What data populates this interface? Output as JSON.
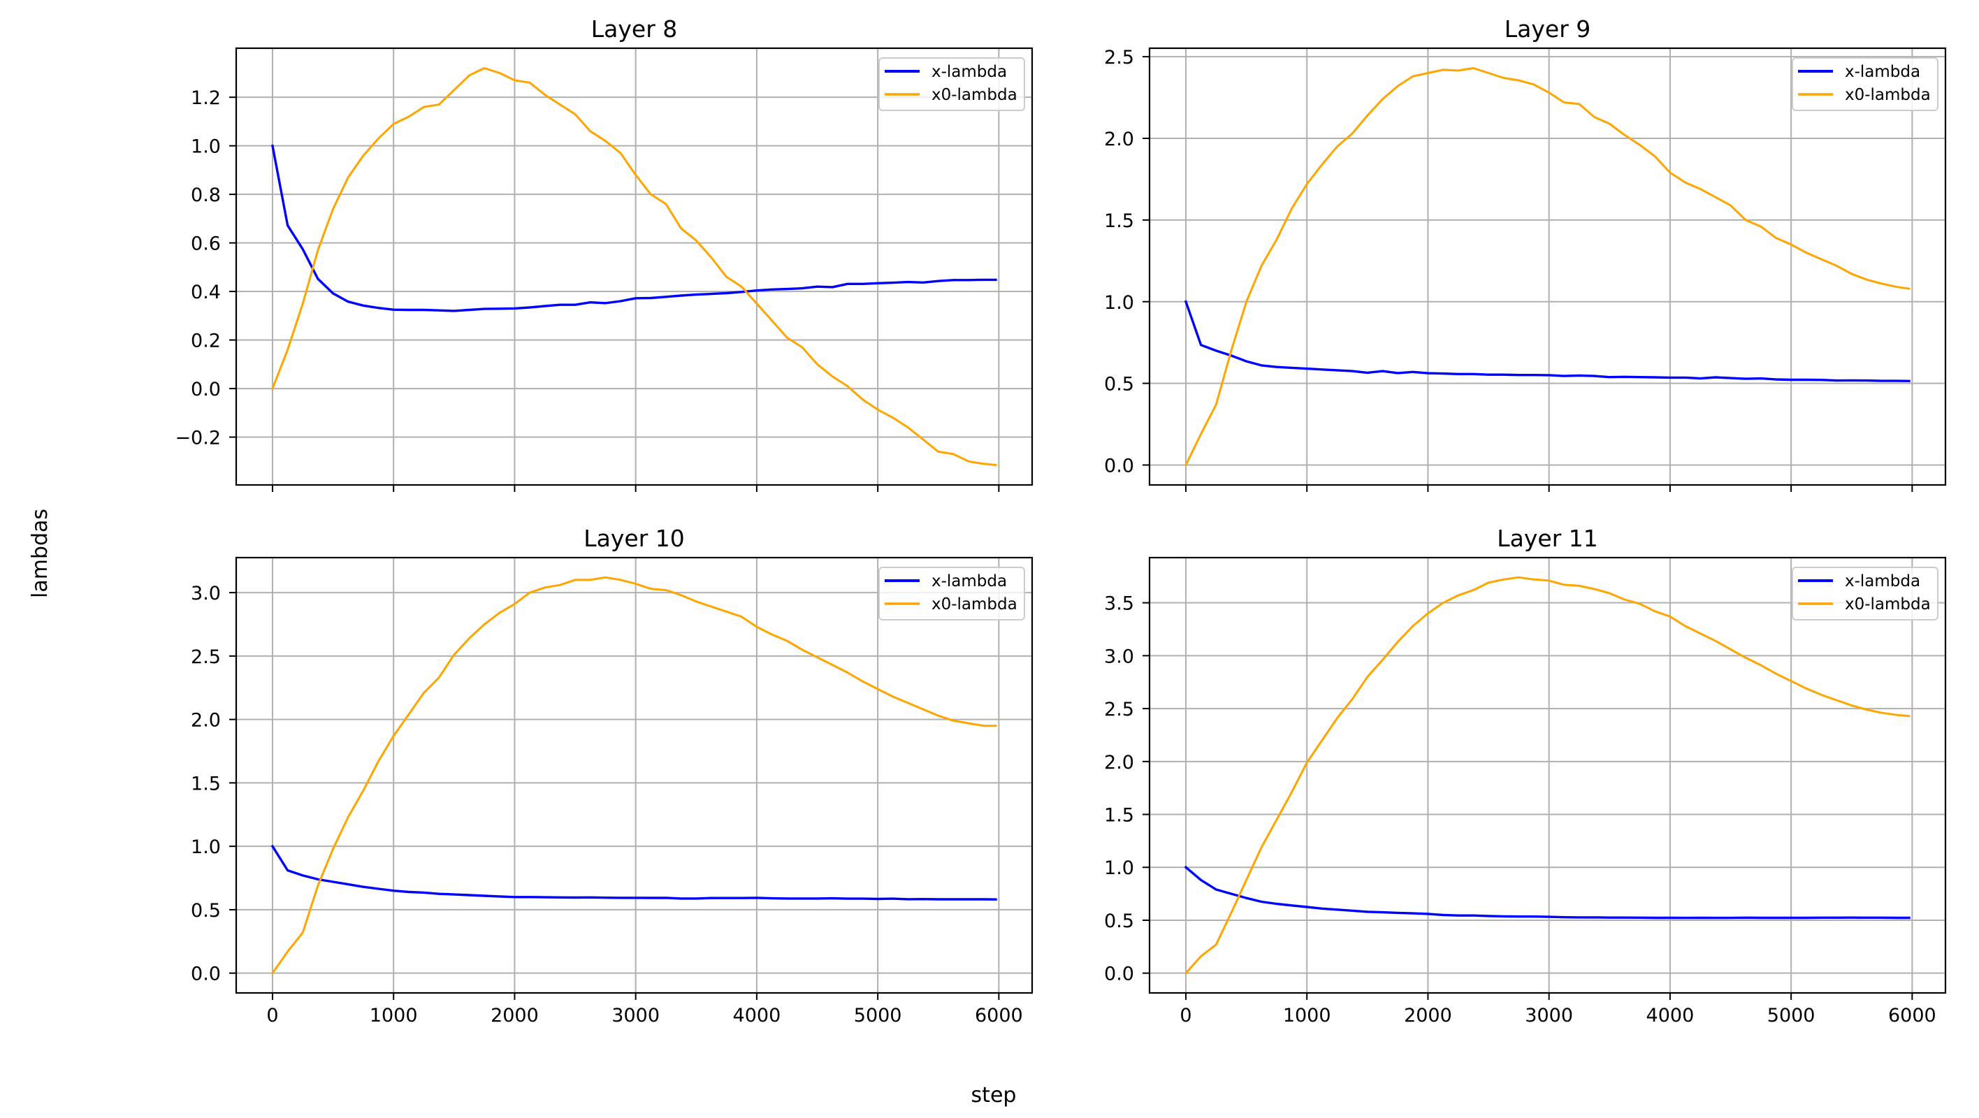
{
  "figure": {
    "xlabel": "step",
    "ylabel": "lambdas"
  },
  "colors": {
    "x_lambda": "#0000ff",
    "x0_lambda": "#ffa500",
    "grid": "#b0b0b0",
    "axes": "#000000",
    "legend_border": "#cccccc"
  },
  "chart_data": [
    {
      "type": "line",
      "title": "Layer 8",
      "xlim": [
        -300,
        6275
      ],
      "ylim": [
        -0.397,
        1.402
      ],
      "xticks": [
        0,
        1000,
        2000,
        3000,
        4000,
        5000,
        6000
      ],
      "yticks": [
        -0.2,
        0.0,
        0.2,
        0.4,
        0.6,
        0.8,
        1.0,
        1.2
      ],
      "ytick_labels": [
        "−0.2",
        "0.0",
        "0.2",
        "0.4",
        "0.6",
        "0.8",
        "1.0",
        "1.2"
      ],
      "grid": true,
      "legend": "top-right",
      "x": [
        0,
        125,
        250,
        375,
        500,
        625,
        750,
        875,
        1000,
        1125,
        1250,
        1375,
        1500,
        1625,
        1750,
        1875,
        2000,
        2125,
        2250,
        2375,
        2500,
        2625,
        2750,
        2875,
        3000,
        3125,
        3250,
        3375,
        3500,
        3625,
        3750,
        3875,
        4000,
        4125,
        4250,
        4375,
        4500,
        4625,
        4750,
        4875,
        5000,
        5125,
        5250,
        5375,
        5500,
        5625,
        5750,
        5875,
        5975
      ],
      "series": [
        {
          "name": "x-lambda",
          "values": [
            1.0,
            0.672,
            0.574,
            0.452,
            0.392,
            0.358,
            0.342,
            0.332,
            0.325,
            0.324,
            0.324,
            0.322,
            0.32,
            0.324,
            0.328,
            0.329,
            0.33,
            0.334,
            0.34,
            0.345,
            0.345,
            0.355,
            0.352,
            0.36,
            0.372,
            0.373,
            0.378,
            0.383,
            0.387,
            0.39,
            0.393,
            0.398,
            0.404,
            0.408,
            0.41,
            0.413,
            0.42,
            0.418,
            0.431,
            0.431,
            0.434,
            0.436,
            0.439,
            0.437,
            0.443,
            0.447,
            0.447,
            0.448,
            0.448
          ]
        },
        {
          "name": "x0-lambda",
          "values": [
            0.0,
            0.16,
            0.35,
            0.57,
            0.74,
            0.87,
            0.96,
            1.03,
            1.09,
            1.12,
            1.16,
            1.17,
            1.23,
            1.29,
            1.32,
            1.3,
            1.27,
            1.26,
            1.21,
            1.17,
            1.13,
            1.06,
            1.02,
            0.97,
            0.88,
            0.8,
            0.76,
            0.66,
            0.61,
            0.54,
            0.46,
            0.42,
            0.35,
            0.28,
            0.21,
            0.17,
            0.1,
            0.05,
            0.01,
            -0.045,
            -0.087,
            -0.12,
            -0.16,
            -0.21,
            -0.26,
            -0.27,
            -0.3,
            -0.31,
            -0.315
          ]
        }
      ]
    },
    {
      "type": "line",
      "title": "Layer 9",
      "xlim": [
        -300,
        6275
      ],
      "ylim": [
        -0.122,
        2.552
      ],
      "xticks": [
        0,
        1000,
        2000,
        3000,
        4000,
        5000,
        6000
      ],
      "yticks": [
        0.0,
        0.5,
        1.0,
        1.5,
        2.0,
        2.5
      ],
      "ytick_labels": [
        "0.0",
        "0.5",
        "1.0",
        "1.5",
        "2.0",
        "2.5"
      ],
      "grid": true,
      "legend": "top-right",
      "x": [
        0,
        125,
        250,
        375,
        500,
        625,
        750,
        875,
        1000,
        1125,
        1250,
        1375,
        1500,
        1625,
        1750,
        1875,
        2000,
        2125,
        2250,
        2375,
        2500,
        2625,
        2750,
        2875,
        3000,
        3125,
        3250,
        3375,
        3500,
        3625,
        3750,
        3875,
        4000,
        4125,
        4250,
        4375,
        4500,
        4625,
        4750,
        4875,
        5000,
        5125,
        5250,
        5375,
        5500,
        5625,
        5750,
        5875,
        5975
      ],
      "series": [
        {
          "name": "x-lambda",
          "values": [
            1.0,
            0.735,
            0.7,
            0.67,
            0.635,
            0.61,
            0.6,
            0.595,
            0.59,
            0.585,
            0.58,
            0.575,
            0.565,
            0.575,
            0.563,
            0.57,
            0.562,
            0.56,
            0.557,
            0.557,
            0.553,
            0.553,
            0.551,
            0.551,
            0.55,
            0.545,
            0.548,
            0.545,
            0.538,
            0.54,
            0.538,
            0.537,
            0.535,
            0.535,
            0.53,
            0.537,
            0.532,
            0.528,
            0.53,
            0.524,
            0.522,
            0.522,
            0.521,
            0.517,
            0.518,
            0.517,
            0.515,
            0.515,
            0.514
          ]
        },
        {
          "name": "x0-lambda",
          "values": [
            0.0,
            0.19,
            0.37,
            0.7,
            1.0,
            1.22,
            1.38,
            1.57,
            1.72,
            1.84,
            1.95,
            2.03,
            2.14,
            2.24,
            2.32,
            2.38,
            2.4,
            2.42,
            2.415,
            2.43,
            2.4,
            2.37,
            2.355,
            2.33,
            2.28,
            2.22,
            2.21,
            2.13,
            2.09,
            2.02,
            1.96,
            1.89,
            1.79,
            1.73,
            1.69,
            1.64,
            1.59,
            1.5,
            1.46,
            1.39,
            1.35,
            1.3,
            1.26,
            1.22,
            1.17,
            1.135,
            1.11,
            1.09,
            1.08
          ]
        }
      ]
    },
    {
      "type": "line",
      "title": "Layer 10",
      "xlim": [
        -300,
        6275
      ],
      "ylim": [
        -0.156,
        3.276
      ],
      "xticks": [
        0,
        1000,
        2000,
        3000,
        4000,
        5000,
        6000
      ],
      "xtick_labels": [
        "0",
        "1000",
        "2000",
        "3000",
        "4000",
        "5000",
        "6000"
      ],
      "yticks": [
        0.0,
        0.5,
        1.0,
        1.5,
        2.0,
        2.5,
        3.0
      ],
      "ytick_labels": [
        "0.0",
        "0.5",
        "1.0",
        "1.5",
        "2.0",
        "2.5",
        "3.0"
      ],
      "grid": true,
      "legend": "top-right",
      "x": [
        0,
        125,
        250,
        375,
        500,
        625,
        750,
        875,
        1000,
        1125,
        1250,
        1375,
        1500,
        1625,
        1750,
        1875,
        2000,
        2125,
        2250,
        2375,
        2500,
        2625,
        2750,
        2875,
        3000,
        3125,
        3250,
        3375,
        3500,
        3625,
        3750,
        3875,
        4000,
        4125,
        4250,
        4375,
        4500,
        4625,
        4750,
        4875,
        5000,
        5125,
        5250,
        5375,
        5500,
        5625,
        5750,
        5875,
        5975
      ],
      "series": [
        {
          "name": "x-lambda",
          "values": [
            1.0,
            0.81,
            0.77,
            0.74,
            0.72,
            0.7,
            0.68,
            0.665,
            0.65,
            0.64,
            0.635,
            0.625,
            0.62,
            0.615,
            0.61,
            0.605,
            0.6,
            0.6,
            0.598,
            0.597,
            0.596,
            0.597,
            0.595,
            0.594,
            0.594,
            0.593,
            0.594,
            0.588,
            0.588,
            0.592,
            0.592,
            0.592,
            0.594,
            0.59,
            0.588,
            0.588,
            0.588,
            0.59,
            0.587,
            0.587,
            0.585,
            0.587,
            0.583,
            0.584,
            0.582,
            0.582,
            0.582,
            0.582,
            0.581
          ]
        },
        {
          "name": "x0-lambda",
          "values": [
            0.0,
            0.17,
            0.32,
            0.69,
            0.98,
            1.23,
            1.44,
            1.67,
            1.87,
            2.04,
            2.21,
            2.33,
            2.51,
            2.64,
            2.75,
            2.84,
            2.91,
            3.0,
            3.04,
            3.06,
            3.1,
            3.1,
            3.12,
            3.1,
            3.07,
            3.03,
            3.02,
            2.98,
            2.93,
            2.89,
            2.85,
            2.81,
            2.73,
            2.67,
            2.62,
            2.55,
            2.49,
            2.43,
            2.37,
            2.3,
            2.24,
            2.18,
            2.13,
            2.08,
            2.03,
            1.99,
            1.97,
            1.95,
            1.95
          ]
        }
      ]
    },
    {
      "type": "line",
      "title": "Layer 11",
      "xlim": [
        -300,
        6275
      ],
      "ylim": [
        -0.187,
        3.927
      ],
      "xticks": [
        0,
        1000,
        2000,
        3000,
        4000,
        5000,
        6000
      ],
      "xtick_labels": [
        "0",
        "1000",
        "2000",
        "3000",
        "4000",
        "5000",
        "6000"
      ],
      "yticks": [
        0.0,
        0.5,
        1.0,
        1.5,
        2.0,
        2.5,
        3.0,
        3.5
      ],
      "ytick_labels": [
        "0.0",
        "0.5",
        "1.0",
        "1.5",
        "2.0",
        "2.5",
        "3.0",
        "3.5"
      ],
      "grid": true,
      "legend": "top-right",
      "x": [
        0,
        125,
        250,
        375,
        500,
        625,
        750,
        875,
        1000,
        1125,
        1250,
        1375,
        1500,
        1625,
        1750,
        1875,
        2000,
        2125,
        2250,
        2375,
        2500,
        2625,
        2750,
        2875,
        3000,
        3125,
        3250,
        3375,
        3500,
        3625,
        3750,
        3875,
        4000,
        4125,
        4250,
        4375,
        4500,
        4625,
        4750,
        4875,
        5000,
        5125,
        5250,
        5375,
        5500,
        5625,
        5750,
        5875,
        5975
      ],
      "series": [
        {
          "name": "x-lambda",
          "values": [
            1.0,
            0.88,
            0.79,
            0.75,
            0.71,
            0.675,
            0.655,
            0.64,
            0.625,
            0.61,
            0.6,
            0.59,
            0.58,
            0.575,
            0.57,
            0.565,
            0.56,
            0.55,
            0.545,
            0.545,
            0.54,
            0.537,
            0.535,
            0.535,
            0.532,
            0.528,
            0.527,
            0.527,
            0.525,
            0.525,
            0.524,
            0.523,
            0.523,
            0.522,
            0.523,
            0.522,
            0.522,
            0.524,
            0.523,
            0.523,
            0.523,
            0.523,
            0.524,
            0.524,
            0.525,
            0.524,
            0.524,
            0.523,
            0.523
          ]
        },
        {
          "name": "x0-lambda",
          "values": [
            0.0,
            0.16,
            0.27,
            0.57,
            0.88,
            1.19,
            1.45,
            1.71,
            1.99,
            2.2,
            2.41,
            2.59,
            2.8,
            2.96,
            3.13,
            3.28,
            3.4,
            3.5,
            3.57,
            3.62,
            3.69,
            3.72,
            3.74,
            3.72,
            3.71,
            3.67,
            3.66,
            3.63,
            3.59,
            3.53,
            3.49,
            3.42,
            3.37,
            3.28,
            3.21,
            3.14,
            3.06,
            2.98,
            2.91,
            2.83,
            2.76,
            2.69,
            2.63,
            2.58,
            2.53,
            2.49,
            2.46,
            2.44,
            2.43
          ]
        }
      ]
    }
  ]
}
